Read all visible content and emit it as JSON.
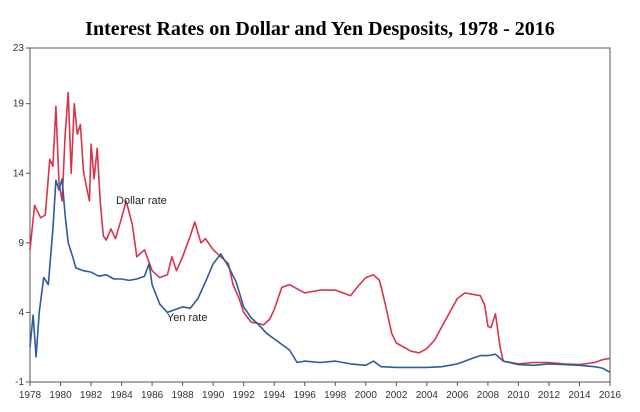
{
  "chart_data": {
    "type": "line",
    "title": "Interest Rates on Dollar and Yen Desposits, 1978 - 2016",
    "xlabel": "",
    "ylabel": "",
    "xlim": [
      1978,
      2016
    ],
    "ylim": [
      -1,
      23
    ],
    "x_ticks": [
      1978,
      1980,
      1982,
      1984,
      1986,
      1988,
      1990,
      1992,
      1994,
      1996,
      1998,
      2000,
      2002,
      2004,
      2006,
      2008,
      2010,
      2012,
      2014,
      2016
    ],
    "y_ticks": [
      -1,
      4,
      9,
      14,
      19,
      23
    ],
    "grid": false,
    "legend": "none",
    "colors": {
      "dollar": "#d9344a",
      "yen": "#2b5d9c",
      "axis": "#555555"
    },
    "annotations": [
      {
        "text": "Dollar rate",
        "series": "Dollar rate",
        "x": 1985.3,
        "y": 11.8
      },
      {
        "text": "Yen rate",
        "series": "Yen rate",
        "x": 1988.3,
        "y": 3.4
      }
    ],
    "series": [
      {
        "name": "Dollar rate",
        "points": [
          [
            1978.0,
            8.5
          ],
          [
            1978.3,
            11.7
          ],
          [
            1978.7,
            10.8
          ],
          [
            1979.0,
            11.0
          ],
          [
            1979.3,
            15.0
          ],
          [
            1979.5,
            14.5
          ],
          [
            1979.7,
            18.8
          ],
          [
            1979.9,
            13.3
          ],
          [
            1980.1,
            12.0
          ],
          [
            1980.3,
            16.7
          ],
          [
            1980.5,
            19.8
          ],
          [
            1980.7,
            14.0
          ],
          [
            1980.9,
            19.0
          ],
          [
            1981.1,
            16.8
          ],
          [
            1981.3,
            17.5
          ],
          [
            1981.5,
            14.2
          ],
          [
            1981.7,
            13.0
          ],
          [
            1981.9,
            12.0
          ],
          [
            1982.0,
            16.1
          ],
          [
            1982.2,
            13.6
          ],
          [
            1982.4,
            15.8
          ],
          [
            1982.6,
            12.0
          ],
          [
            1982.8,
            9.5
          ],
          [
            1983.0,
            9.2
          ],
          [
            1983.3,
            10.0
          ],
          [
            1983.6,
            9.3
          ],
          [
            1984.0,
            10.8
          ],
          [
            1984.3,
            12.0
          ],
          [
            1984.7,
            10.3
          ],
          [
            1985.0,
            8.0
          ],
          [
            1985.5,
            8.5
          ],
          [
            1986.0,
            7.0
          ],
          [
            1986.5,
            6.5
          ],
          [
            1987.0,
            6.7
          ],
          [
            1987.3,
            8.0
          ],
          [
            1987.6,
            7.0
          ],
          [
            1988.0,
            8.0
          ],
          [
            1988.5,
            9.5
          ],
          [
            1988.8,
            10.5
          ],
          [
            1989.2,
            9.0
          ],
          [
            1989.5,
            9.3
          ],
          [
            1990.0,
            8.5
          ],
          [
            1990.5,
            8.0
          ],
          [
            1991.0,
            7.5
          ],
          [
            1991.3,
            6.0
          ],
          [
            1991.7,
            5.0
          ],
          [
            1992.0,
            4.0
          ],
          [
            1992.5,
            3.3
          ],
          [
            1993.0,
            3.2
          ],
          [
            1993.3,
            3.1
          ],
          [
            1993.7,
            3.5
          ],
          [
            1994.0,
            4.2
          ],
          [
            1994.5,
            5.8
          ],
          [
            1995.0,
            6.0
          ],
          [
            1995.5,
            5.7
          ],
          [
            1996.0,
            5.4
          ],
          [
            1997.0,
            5.6
          ],
          [
            1998.0,
            5.6
          ],
          [
            1998.5,
            5.4
          ],
          [
            1999.0,
            5.2
          ],
          [
            1999.5,
            5.9
          ],
          [
            2000.0,
            6.5
          ],
          [
            2000.5,
            6.7
          ],
          [
            2000.9,
            6.3
          ],
          [
            2001.3,
            4.5
          ],
          [
            2001.7,
            2.5
          ],
          [
            2002.0,
            1.8
          ],
          [
            2003.0,
            1.2
          ],
          [
            2003.5,
            1.1
          ],
          [
            2004.0,
            1.4
          ],
          [
            2004.5,
            2.0
          ],
          [
            2005.0,
            3.0
          ],
          [
            2005.5,
            4.0
          ],
          [
            2006.0,
            5.0
          ],
          [
            2006.5,
            5.4
          ],
          [
            2007.0,
            5.3
          ],
          [
            2007.5,
            5.2
          ],
          [
            2007.8,
            4.5
          ],
          [
            2008.0,
            3.0
          ],
          [
            2008.2,
            2.9
          ],
          [
            2008.5,
            3.9
          ],
          [
            2008.8,
            1.5
          ],
          [
            2009.0,
            0.5
          ],
          [
            2010.0,
            0.3
          ],
          [
            2011.0,
            0.4
          ],
          [
            2012.0,
            0.4
          ],
          [
            2013.0,
            0.3
          ],
          [
            2014.0,
            0.25
          ],
          [
            2015.0,
            0.4
          ],
          [
            2015.5,
            0.6
          ],
          [
            2016.0,
            0.7
          ]
        ]
      },
      {
        "name": "Yen rate",
        "points": [
          [
            1978.0,
            1.5
          ],
          [
            1978.2,
            3.8
          ],
          [
            1978.4,
            0.8
          ],
          [
            1978.6,
            4.0
          ],
          [
            1978.9,
            6.5
          ],
          [
            1979.2,
            6.0
          ],
          [
            1979.5,
            10.0
          ],
          [
            1979.7,
            13.5
          ],
          [
            1979.9,
            12.8
          ],
          [
            1980.1,
            13.6
          ],
          [
            1980.3,
            11.0
          ],
          [
            1980.5,
            9.0
          ],
          [
            1980.8,
            8.0
          ],
          [
            1981.0,
            7.2
          ],
          [
            1981.5,
            7.0
          ],
          [
            1982.0,
            6.9
          ],
          [
            1982.5,
            6.6
          ],
          [
            1983.0,
            6.7
          ],
          [
            1983.5,
            6.4
          ],
          [
            1984.0,
            6.4
          ],
          [
            1984.5,
            6.3
          ],
          [
            1985.0,
            6.4
          ],
          [
            1985.5,
            6.6
          ],
          [
            1985.8,
            7.5
          ],
          [
            1986.0,
            6.0
          ],
          [
            1986.5,
            4.6
          ],
          [
            1987.0,
            4.0
          ],
          [
            1987.5,
            4.2
          ],
          [
            1988.0,
            4.4
          ],
          [
            1988.5,
            4.3
          ],
          [
            1989.0,
            5.0
          ],
          [
            1989.5,
            6.2
          ],
          [
            1990.0,
            7.5
          ],
          [
            1990.5,
            8.2
          ],
          [
            1991.0,
            7.3
          ],
          [
            1991.5,
            6.2
          ],
          [
            1992.0,
            4.4
          ],
          [
            1992.5,
            3.6
          ],
          [
            1993.0,
            3.1
          ],
          [
            1993.5,
            2.5
          ],
          [
            1994.0,
            2.1
          ],
          [
            1995.0,
            1.3
          ],
          [
            1995.5,
            0.4
          ],
          [
            1996.0,
            0.5
          ],
          [
            1997.0,
            0.4
          ],
          [
            1998.0,
            0.5
          ],
          [
            1999.0,
            0.3
          ],
          [
            2000.0,
            0.2
          ],
          [
            2000.5,
            0.5
          ],
          [
            2001.0,
            0.1
          ],
          [
            2002.0,
            0.05
          ],
          [
            2003.0,
            0.05
          ],
          [
            2004.0,
            0.05
          ],
          [
            2005.0,
            0.1
          ],
          [
            2006.0,
            0.3
          ],
          [
            2007.0,
            0.7
          ],
          [
            2007.5,
            0.9
          ],
          [
            2008.0,
            0.9
          ],
          [
            2008.5,
            1.0
          ],
          [
            2009.0,
            0.5
          ],
          [
            2010.0,
            0.25
          ],
          [
            2011.0,
            0.2
          ],
          [
            2012.0,
            0.3
          ],
          [
            2013.0,
            0.25
          ],
          [
            2014.0,
            0.2
          ],
          [
            2015.0,
            0.1
          ],
          [
            2015.5,
            0.0
          ],
          [
            2016.0,
            -0.3
          ]
        ]
      }
    ]
  }
}
